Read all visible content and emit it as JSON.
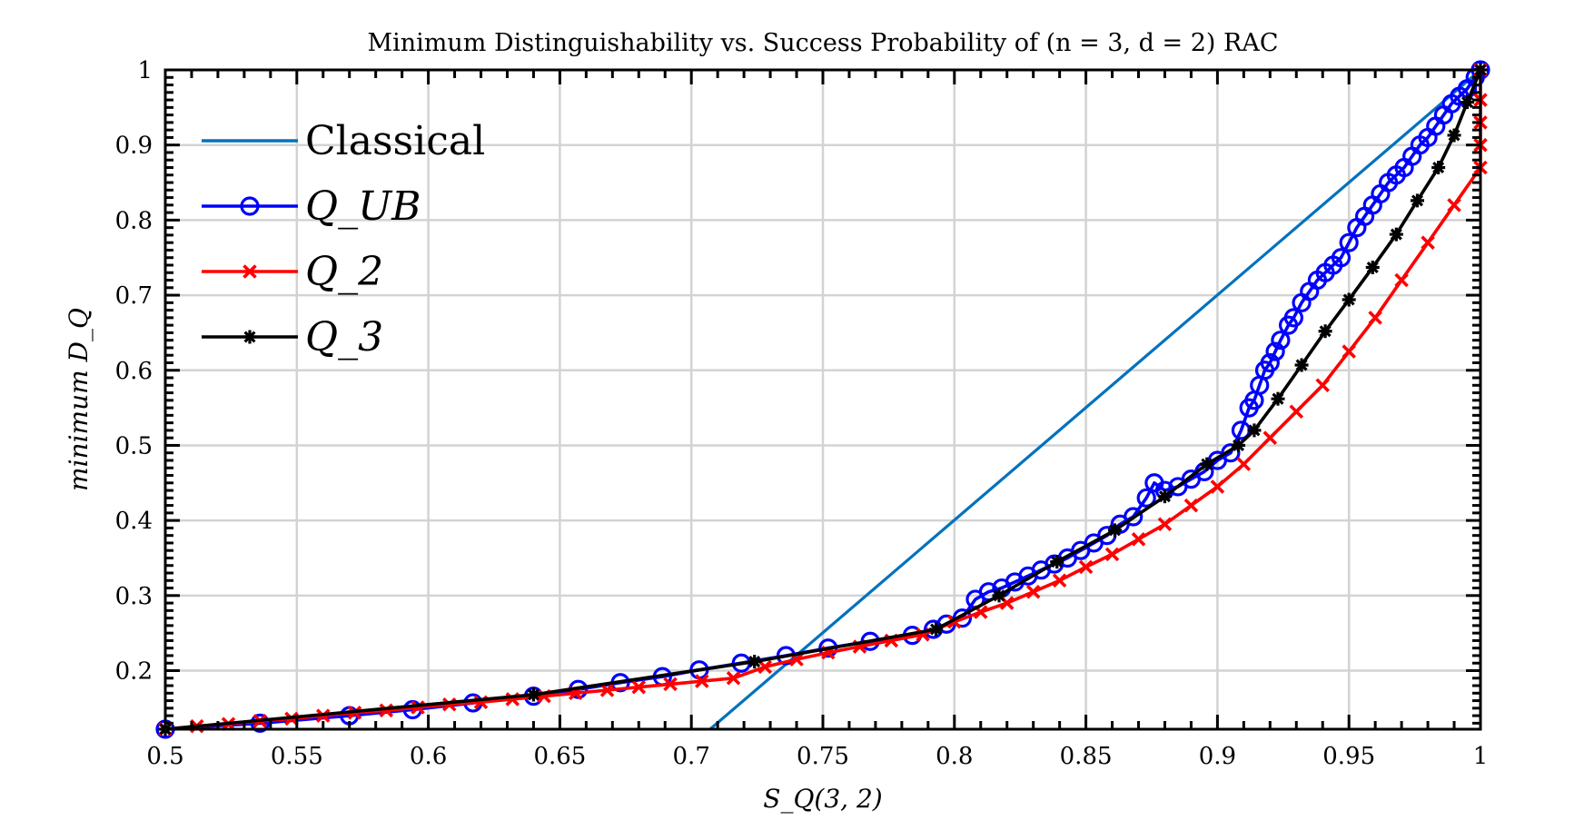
{
  "chart_data": {
    "type": "line",
    "title": "Minimum Distinguishability vs. Success Probability of (n = 3, d = 2) RAC",
    "xlabel": "S_Q(3, 2)",
    "ylabel": "minimum D_Q",
    "xlim": [
      0.5,
      1.0
    ],
    "ylim": [
      0.122,
      1.0
    ],
    "grid": true,
    "legend_position": "top-left",
    "x_ticks": [
      0.5,
      0.55,
      0.6,
      0.65,
      0.7,
      0.75,
      0.8,
      0.85,
      0.9,
      0.95,
      1.0
    ],
    "x_tick_labels": [
      "0.5",
      "0.55",
      "0.6",
      "0.65",
      "0.7",
      "0.75",
      "0.8",
      "0.85",
      "0.9",
      "0.95",
      "1"
    ],
    "y_ticks": [
      0.2,
      0.3,
      0.4,
      0.5,
      0.6,
      0.7,
      0.8,
      0.9,
      1.0
    ],
    "y_tick_labels": [
      "0.2",
      "0.3",
      "0.4",
      "0.5",
      "0.6",
      "0.7",
      "0.8",
      "0.9",
      "1"
    ],
    "colors": {
      "classical": "#0072bd",
      "q_ub": "#0000ff",
      "q2": "#ff0000",
      "q3": "#000000"
    },
    "series": [
      {
        "key": "classical",
        "name": "Classical",
        "marker": "none",
        "x": [
          0.7071,
          1.0
        ],
        "y": [
          0.122,
          1.0
        ]
      },
      {
        "key": "q_ub",
        "name": "Q_UB",
        "marker": "circle",
        "x": [
          0.5,
          0.536,
          0.57,
          0.594,
          0.617,
          0.64,
          0.657,
          0.673,
          0.689,
          0.703,
          0.719,
          0.736,
          0.752,
          0.768,
          0.784,
          0.792,
          0.797,
          0.803,
          0.808,
          0.813,
          0.818,
          0.823,
          0.828,
          0.833,
          0.838,
          0.843,
          0.848,
          0.853,
          0.858,
          0.863,
          0.868,
          0.873,
          0.876,
          0.88,
          0.885,
          0.89,
          0.895,
          0.9,
          0.905,
          0.909,
          0.912,
          0.914,
          0.916,
          0.918,
          0.92,
          0.922,
          0.924,
          0.927,
          0.929,
          0.932,
          0.935,
          0.938,
          0.941,
          0.944,
          0.947,
          0.95,
          0.953,
          0.956,
          0.959,
          0.962,
          0.965,
          0.968,
          0.971,
          0.974,
          0.977,
          0.98,
          0.983,
          0.986,
          0.989,
          0.992,
          0.995,
          0.998,
          1.0
        ],
        "y": [
          0.122,
          0.13,
          0.14,
          0.148,
          0.157,
          0.166,
          0.175,
          0.184,
          0.192,
          0.201,
          0.21,
          0.22,
          0.23,
          0.239,
          0.247,
          0.255,
          0.262,
          0.27,
          0.295,
          0.305,
          0.31,
          0.318,
          0.326,
          0.334,
          0.342,
          0.35,
          0.36,
          0.37,
          0.38,
          0.395,
          0.405,
          0.43,
          0.45,
          0.44,
          0.445,
          0.455,
          0.465,
          0.48,
          0.49,
          0.52,
          0.55,
          0.56,
          0.58,
          0.6,
          0.61,
          0.625,
          0.64,
          0.66,
          0.67,
          0.69,
          0.705,
          0.72,
          0.73,
          0.74,
          0.75,
          0.77,
          0.79,
          0.805,
          0.82,
          0.835,
          0.85,
          0.86,
          0.87,
          0.885,
          0.9,
          0.91,
          0.925,
          0.94,
          0.955,
          0.965,
          0.975,
          0.99,
          1.0
        ]
      },
      {
        "key": "q2",
        "name": "Q_2",
        "marker": "cross",
        "x": [
          0.5,
          0.512,
          0.524,
          0.536,
          0.548,
          0.56,
          0.572,
          0.584,
          0.596,
          0.608,
          0.62,
          0.632,
          0.644,
          0.656,
          0.668,
          0.68,
          0.692,
          0.704,
          0.716,
          0.728,
          0.74,
          0.752,
          0.764,
          0.776,
          0.788,
          0.8,
          0.81,
          0.82,
          0.83,
          0.84,
          0.85,
          0.86,
          0.87,
          0.88,
          0.89,
          0.9,
          0.91,
          0.92,
          0.93,
          0.94,
          0.95,
          0.96,
          0.97,
          0.98,
          0.99,
          1.0,
          1.0,
          1.0,
          1.0,
          1.0
        ],
        "y": [
          0.122,
          0.126,
          0.129,
          0.133,
          0.136,
          0.14,
          0.144,
          0.147,
          0.151,
          0.155,
          0.158,
          0.162,
          0.166,
          0.17,
          0.174,
          0.178,
          0.182,
          0.186,
          0.19,
          0.205,
          0.215,
          0.224,
          0.232,
          0.24,
          0.248,
          0.265,
          0.278,
          0.29,
          0.305,
          0.32,
          0.338,
          0.355,
          0.375,
          0.395,
          0.42,
          0.445,
          0.475,
          0.51,
          0.545,
          0.58,
          0.625,
          0.67,
          0.72,
          0.77,
          0.82,
          0.87,
          0.9,
          0.93,
          0.96,
          1.0
        ]
      },
      {
        "key": "q3",
        "name": "Q_3",
        "marker": "star",
        "x": [
          0.5,
          0.64,
          0.724,
          0.793,
          0.817,
          0.839,
          0.861,
          0.88,
          0.896,
          0.908,
          0.914,
          0.923,
          0.932,
          0.941,
          0.95,
          0.959,
          0.968,
          0.976,
          0.984,
          0.99,
          0.995,
          1.0
        ],
        "y": [
          0.122,
          0.168,
          0.212,
          0.255,
          0.3,
          0.345,
          0.387,
          0.432,
          0.475,
          0.5,
          0.52,
          0.562,
          0.607,
          0.652,
          0.694,
          0.737,
          0.781,
          0.826,
          0.87,
          0.913,
          0.957,
          1.0
        ]
      }
    ]
  }
}
